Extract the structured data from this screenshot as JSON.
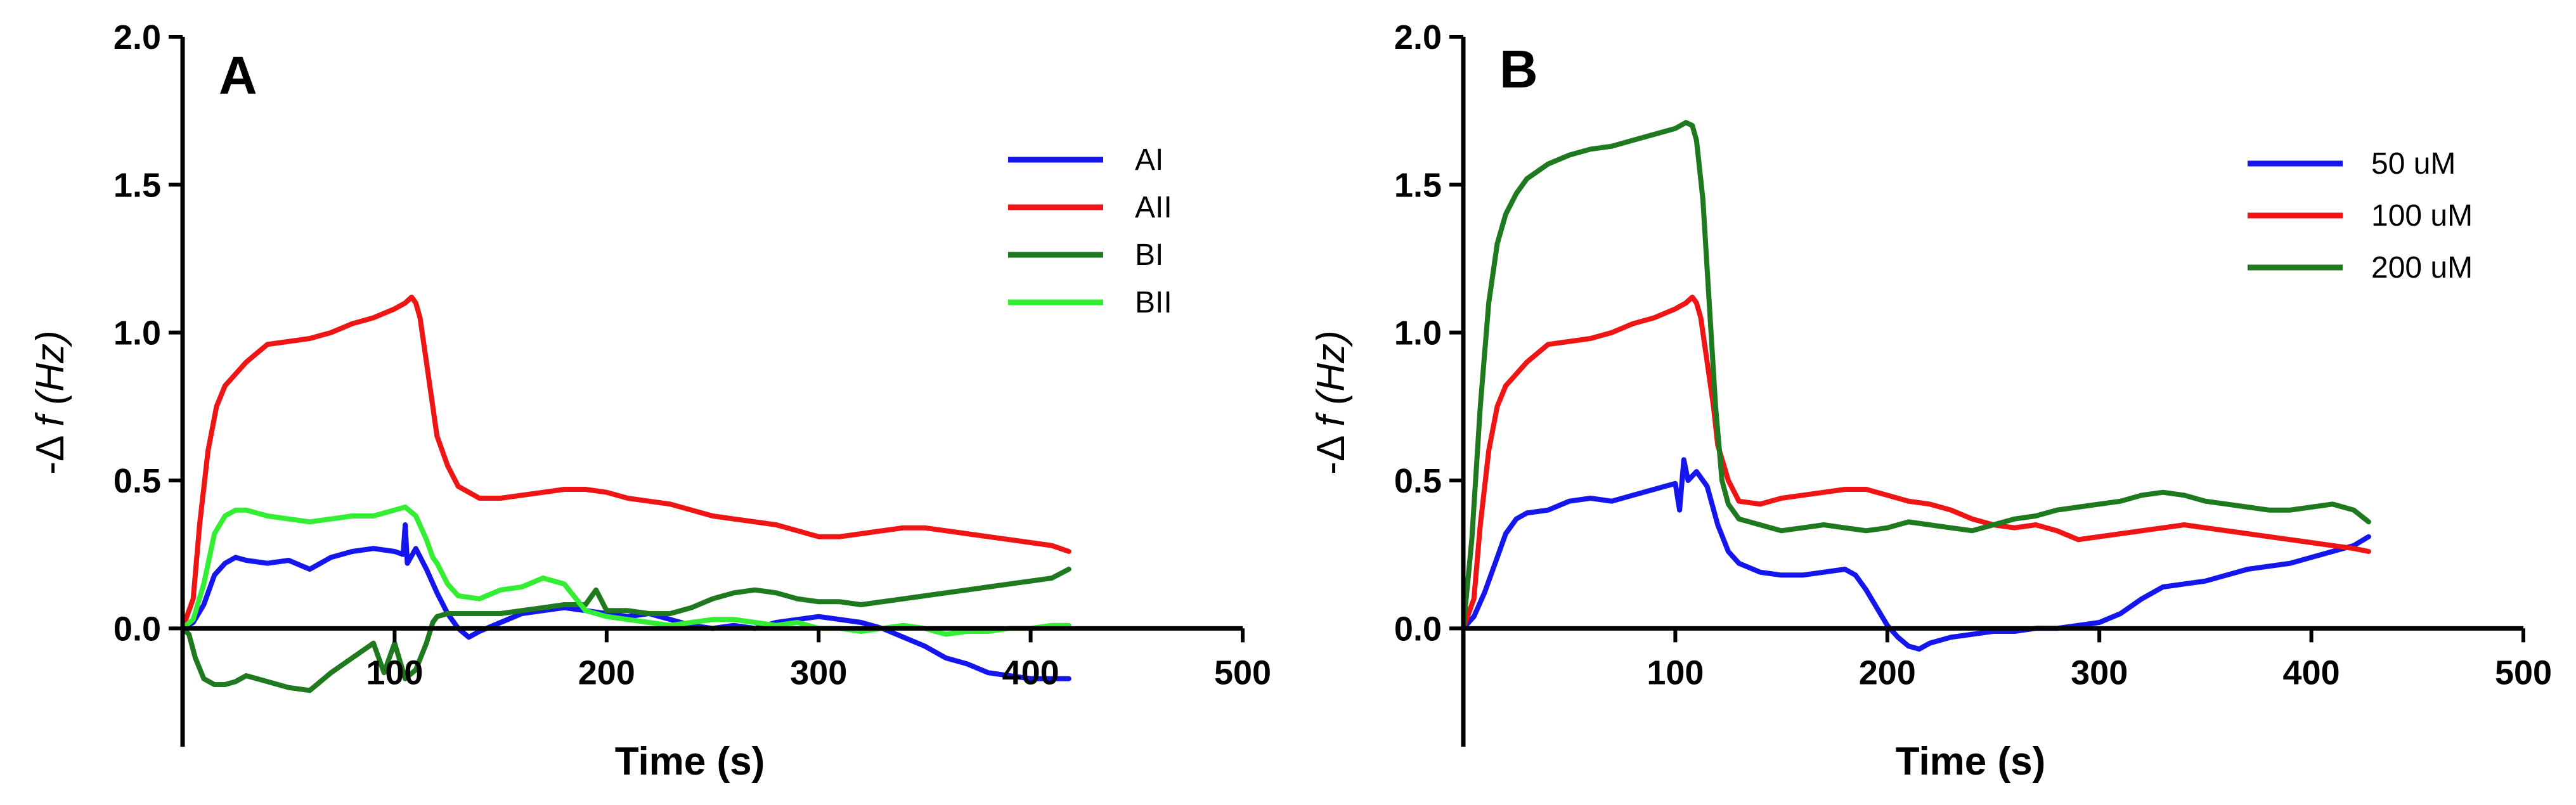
{
  "chart_data": [
    {
      "type": "line",
      "panel_label": "A",
      "xlabel": "Time (s)",
      "ylabel_prefix": "-Δ",
      "ylabel_var": "f",
      "ylabel_unit": "(Hz)",
      "xlim": [
        0,
        500
      ],
      "ylim": [
        -0.4,
        2.0
      ],
      "x_ticks": [
        100,
        200,
        300,
        400,
        500
      ],
      "x_tick_labels": [
        "100",
        "200",
        "300",
        "400",
        "500"
      ],
      "y_ticks": [
        0.0,
        0.5,
        1.0,
        1.5,
        2.0
      ],
      "y_tick_labels": [
        "0.0",
        "0.5",
        "1.0",
        "1.5",
        "2.0"
      ],
      "legend_position": "top-right",
      "series": [
        {
          "name": "AI",
          "color": "#1515ee",
          "x": [
            0,
            5,
            10,
            15,
            20,
            25,
            30,
            40,
            50,
            60,
            70,
            80,
            90,
            100,
            104,
            105,
            106,
            110,
            115,
            120,
            125,
            130,
            135,
            140,
            150,
            160,
            170,
            180,
            190,
            200,
            210,
            220,
            230,
            240,
            250,
            260,
            270,
            280,
            290,
            300,
            310,
            320,
            330,
            340,
            350,
            360,
            370,
            380,
            390,
            400,
            410,
            418
          ],
          "y": [
            0.0,
            0.02,
            0.08,
            0.18,
            0.22,
            0.24,
            0.23,
            0.22,
            0.23,
            0.2,
            0.24,
            0.26,
            0.27,
            0.26,
            0.25,
            0.35,
            0.22,
            0.27,
            0.2,
            0.12,
            0.05,
            0.0,
            -0.03,
            -0.01,
            0.02,
            0.05,
            0.06,
            0.07,
            0.06,
            0.05,
            0.04,
            0.05,
            0.03,
            0.01,
            0.0,
            0.01,
            0.0,
            0.02,
            0.03,
            0.04,
            0.03,
            0.02,
            0.0,
            -0.03,
            -0.06,
            -0.1,
            -0.12,
            -0.15,
            -0.16,
            -0.17,
            -0.17,
            -0.17
          ]
        },
        {
          "name": "AII",
          "color": "#f01515",
          "x": [
            0,
            5,
            8,
            12,
            16,
            20,
            25,
            30,
            35,
            40,
            50,
            60,
            70,
            80,
            90,
            100,
            105,
            108,
            110,
            112,
            115,
            118,
            120,
            125,
            130,
            140,
            150,
            160,
            170,
            180,
            190,
            200,
            210,
            220,
            230,
            240,
            250,
            260,
            270,
            280,
            290,
            300,
            310,
            320,
            330,
            340,
            350,
            360,
            370,
            380,
            390,
            400,
            410,
            418
          ],
          "y": [
            0.0,
            0.1,
            0.35,
            0.6,
            0.75,
            0.82,
            0.86,
            0.9,
            0.93,
            0.96,
            0.97,
            0.98,
            1.0,
            1.03,
            1.05,
            1.08,
            1.1,
            1.12,
            1.1,
            1.05,
            0.9,
            0.75,
            0.65,
            0.55,
            0.48,
            0.44,
            0.44,
            0.45,
            0.46,
            0.47,
            0.47,
            0.46,
            0.44,
            0.43,
            0.42,
            0.4,
            0.38,
            0.37,
            0.36,
            0.35,
            0.33,
            0.31,
            0.31,
            0.32,
            0.33,
            0.34,
            0.34,
            0.33,
            0.32,
            0.31,
            0.3,
            0.29,
            0.28,
            0.26
          ]
        },
        {
          "name": "BI",
          "color": "#1f7a1f",
          "x": [
            0,
            3,
            6,
            10,
            15,
            20,
            25,
            30,
            40,
            50,
            60,
            70,
            80,
            90,
            95,
            100,
            105,
            110,
            115,
            118,
            120,
            125,
            130,
            140,
            150,
            160,
            170,
            180,
            190,
            195,
            200,
            210,
            220,
            230,
            240,
            250,
            260,
            270,
            280,
            290,
            300,
            310,
            320,
            330,
            340,
            350,
            360,
            370,
            380,
            390,
            400,
            410,
            418
          ],
          "y": [
            0.0,
            -0.02,
            -0.1,
            -0.17,
            -0.19,
            -0.19,
            -0.18,
            -0.16,
            -0.18,
            -0.2,
            -0.21,
            -0.15,
            -0.1,
            -0.05,
            -0.15,
            -0.05,
            -0.17,
            -0.14,
            -0.05,
            0.02,
            0.04,
            0.05,
            0.05,
            0.05,
            0.05,
            0.06,
            0.07,
            0.08,
            0.08,
            0.13,
            0.06,
            0.06,
            0.05,
            0.05,
            0.07,
            0.1,
            0.12,
            0.13,
            0.12,
            0.1,
            0.09,
            0.09,
            0.08,
            0.09,
            0.1,
            0.11,
            0.12,
            0.13,
            0.14,
            0.15,
            0.16,
            0.17,
            0.2
          ]
        },
        {
          "name": "BII",
          "color": "#33ee33",
          "x": [
            0,
            5,
            10,
            15,
            20,
            25,
            30,
            40,
            50,
            60,
            70,
            80,
            90,
            100,
            105,
            110,
            115,
            118,
            120,
            125,
            130,
            140,
            150,
            160,
            170,
            180,
            190,
            200,
            210,
            220,
            230,
            240,
            250,
            260,
            270,
            280,
            290,
            300,
            310,
            320,
            330,
            340,
            350,
            360,
            370,
            380,
            390,
            400,
            410,
            418
          ],
          "y": [
            0.0,
            0.03,
            0.15,
            0.32,
            0.38,
            0.4,
            0.4,
            0.38,
            0.37,
            0.36,
            0.37,
            0.38,
            0.38,
            0.4,
            0.41,
            0.38,
            0.3,
            0.24,
            0.22,
            0.15,
            0.11,
            0.1,
            0.13,
            0.14,
            0.17,
            0.15,
            0.06,
            0.04,
            0.03,
            0.02,
            0.01,
            0.02,
            0.03,
            0.03,
            0.02,
            0.01,
            0.02,
            0.0,
            0.0,
            -0.01,
            0.0,
            0.01,
            0.0,
            -0.02,
            -0.01,
            -0.01,
            0.0,
            0.0,
            0.01,
            0.01
          ]
        }
      ]
    },
    {
      "type": "line",
      "panel_label": "B",
      "xlabel": "Time (s)",
      "ylabel_prefix": "-Δ",
      "ylabel_var": "f",
      "ylabel_unit": "(Hz)",
      "xlim": [
        0,
        500
      ],
      "ylim": [
        -0.4,
        2.0
      ],
      "x_ticks": [
        100,
        200,
        300,
        400,
        500
      ],
      "x_tick_labels": [
        "100",
        "200",
        "300",
        "400",
        "500"
      ],
      "y_ticks": [
        0.0,
        0.5,
        1.0,
        1.5,
        2.0
      ],
      "y_tick_labels": [
        "0.0",
        "0.5",
        "1.0",
        "1.5",
        "2.0"
      ],
      "legend_position": "top-right",
      "series": [
        {
          "name": "50 uM",
          "color": "#1515ee",
          "x": [
            0,
            5,
            10,
            15,
            20,
            25,
            30,
            40,
            50,
            60,
            70,
            80,
            90,
            100,
            102,
            104,
            106,
            110,
            115,
            120,
            125,
            130,
            140,
            150,
            160,
            170,
            180,
            185,
            190,
            195,
            200,
            205,
            210,
            215,
            220,
            230,
            240,
            250,
            260,
            270,
            280,
            290,
            300,
            310,
            320,
            330,
            340,
            350,
            360,
            370,
            380,
            390,
            400,
            410,
            420,
            427
          ],
          "y": [
            0.0,
            0.04,
            0.12,
            0.22,
            0.32,
            0.37,
            0.39,
            0.4,
            0.43,
            0.44,
            0.43,
            0.45,
            0.47,
            0.49,
            0.4,
            0.57,
            0.5,
            0.53,
            0.48,
            0.35,
            0.26,
            0.22,
            0.19,
            0.18,
            0.18,
            0.19,
            0.2,
            0.18,
            0.13,
            0.07,
            0.01,
            -0.03,
            -0.06,
            -0.07,
            -0.05,
            -0.03,
            -0.02,
            -0.01,
            -0.01,
            0.0,
            0.0,
            0.01,
            0.02,
            0.05,
            0.1,
            0.14,
            0.15,
            0.16,
            0.18,
            0.2,
            0.21,
            0.22,
            0.24,
            0.26,
            0.28,
            0.31
          ]
        },
        {
          "name": "100 uM",
          "color": "#f01515",
          "x": [
            0,
            5,
            8,
            12,
            16,
            20,
            25,
            30,
            35,
            40,
            50,
            60,
            70,
            80,
            90,
            100,
            105,
            108,
            110,
            112,
            115,
            118,
            120,
            125,
            130,
            140,
            150,
            160,
            170,
            180,
            190,
            200,
            210,
            220,
            230,
            240,
            250,
            260,
            270,
            280,
            290,
            300,
            310,
            320,
            330,
            340,
            350,
            360,
            370,
            380,
            390,
            400,
            410,
            420,
            427
          ],
          "y": [
            0.0,
            0.1,
            0.35,
            0.6,
            0.75,
            0.82,
            0.86,
            0.9,
            0.93,
            0.96,
            0.97,
            0.98,
            1.0,
            1.03,
            1.05,
            1.08,
            1.1,
            1.12,
            1.1,
            1.05,
            0.9,
            0.75,
            0.62,
            0.5,
            0.43,
            0.42,
            0.44,
            0.45,
            0.46,
            0.47,
            0.47,
            0.45,
            0.43,
            0.42,
            0.4,
            0.37,
            0.35,
            0.34,
            0.35,
            0.33,
            0.3,
            0.31,
            0.32,
            0.33,
            0.34,
            0.35,
            0.34,
            0.33,
            0.32,
            0.31,
            0.3,
            0.29,
            0.28,
            0.27,
            0.26
          ]
        },
        {
          "name": "200 uM",
          "color": "#1f7a1f",
          "x": [
            0,
            4,
            8,
            12,
            16,
            20,
            25,
            30,
            40,
            50,
            60,
            70,
            80,
            90,
            100,
            105,
            108,
            110,
            113,
            116,
            119,
            122,
            125,
            130,
            140,
            150,
            160,
            170,
            180,
            190,
            200,
            210,
            220,
            230,
            240,
            250,
            260,
            270,
            280,
            290,
            300,
            310,
            320,
            330,
            340,
            350,
            360,
            370,
            380,
            390,
            400,
            410,
            420,
            427
          ],
          "y": [
            0.0,
            0.3,
            0.75,
            1.1,
            1.3,
            1.4,
            1.47,
            1.52,
            1.57,
            1.6,
            1.62,
            1.63,
            1.65,
            1.67,
            1.69,
            1.71,
            1.7,
            1.65,
            1.45,
            1.1,
            0.75,
            0.5,
            0.42,
            0.37,
            0.35,
            0.33,
            0.34,
            0.35,
            0.34,
            0.33,
            0.34,
            0.36,
            0.35,
            0.34,
            0.33,
            0.35,
            0.37,
            0.38,
            0.4,
            0.41,
            0.42,
            0.43,
            0.45,
            0.46,
            0.45,
            0.43,
            0.42,
            0.41,
            0.4,
            0.4,
            0.41,
            0.42,
            0.4,
            0.36
          ]
        }
      ]
    }
  ]
}
